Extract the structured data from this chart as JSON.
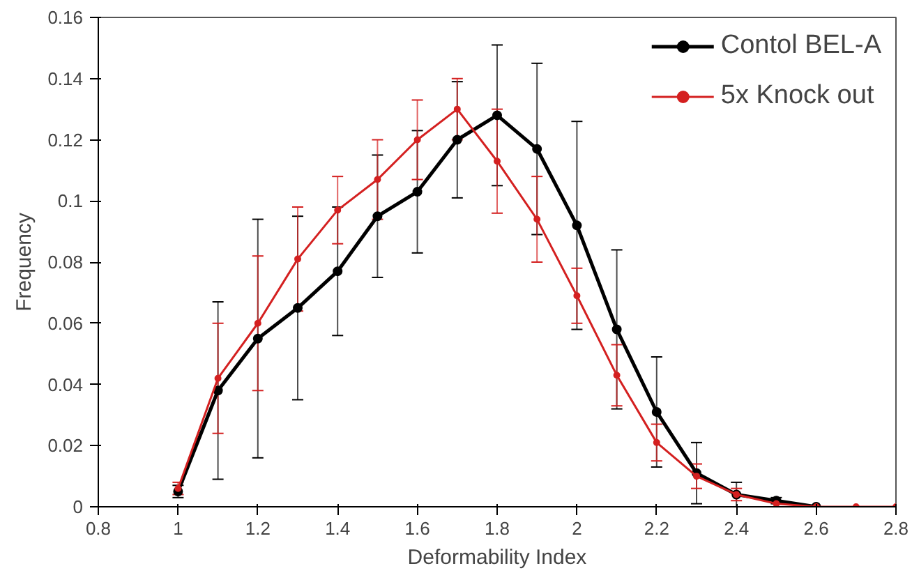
{
  "chart_data": {
    "type": "line",
    "xlabel": "Deformability Index",
    "ylabel": "Frequency",
    "xlim": [
      0.8,
      2.8
    ],
    "xticks": [
      0.8,
      1,
      1.2,
      1.4,
      1.6,
      1.8,
      2,
      2.2,
      2.4,
      2.6,
      2.8
    ],
    "ylim": [
      0,
      0.16
    ],
    "yticks": [
      0,
      0.02,
      0.04,
      0.06,
      0.08,
      0.1,
      0.12,
      0.14,
      0.16
    ],
    "grid": false,
    "legend": "top right",
    "marker": "circle",
    "line_style": "solid",
    "series": [
      {
        "name": "Contol BEL-A",
        "color": "#000000",
        "x": [
          1,
          1.1,
          1.2,
          1.3,
          1.4,
          1.5,
          1.6,
          1.7,
          1.8,
          1.9,
          2,
          2.1,
          2.2,
          2.3,
          2.4,
          2.5,
          2.6
        ],
        "values": [
          0.005,
          0.038,
          0.055,
          0.065,
          0.077,
          0.095,
          0.103,
          0.12,
          0.128,
          0.117,
          0.092,
          0.058,
          0.031,
          0.011,
          0.004,
          0.002,
          0.0
        ],
        "errors": [
          0.002,
          0.029,
          0.039,
          0.03,
          0.021,
          0.02,
          0.02,
          0.019,
          0.023,
          0.028,
          0.034,
          0.026,
          0.018,
          0.01,
          0.004,
          0.001,
          null
        ]
      },
      {
        "name": "5x Knock out",
        "color": "#d42020",
        "x": [
          1,
          1.1,
          1.2,
          1.3,
          1.4,
          1.5,
          1.6,
          1.7,
          1.8,
          1.9,
          2,
          2.1,
          2.2,
          2.3,
          2.4,
          2.5,
          2.6,
          2.7,
          2.8
        ],
        "values": [
          0.006,
          0.042,
          0.06,
          0.081,
          0.097,
          0.107,
          0.12,
          0.13,
          0.113,
          0.094,
          0.069,
          0.043,
          0.021,
          0.01,
          0.004,
          0.001,
          0.0,
          0.0,
          0.0
        ],
        "errors": [
          0.002,
          0.018,
          0.022,
          0.017,
          0.011,
          0.013,
          0.013,
          0.01,
          0.017,
          0.014,
          0.009,
          0.01,
          0.006,
          0.004,
          0.002,
          0.001,
          null,
          null,
          null
        ]
      }
    ]
  }
}
